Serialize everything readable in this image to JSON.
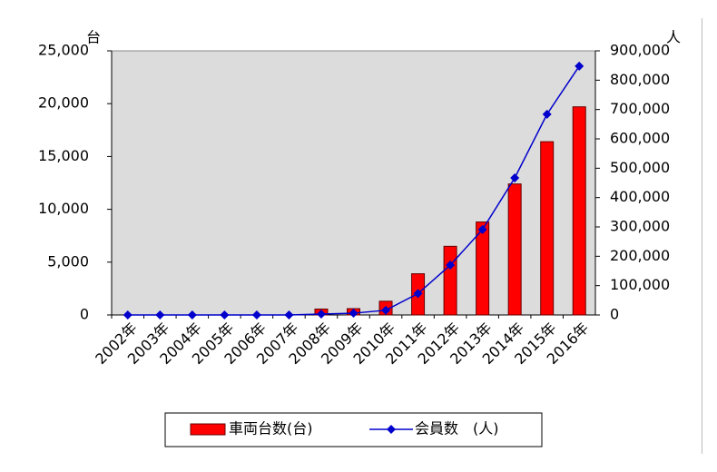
{
  "chart_data": {
    "type": "combo",
    "y_unit": "台",
    "y2_unit": "人",
    "categories": [
      "2002年",
      "2003年",
      "2004年",
      "2005年",
      "2006年",
      "2007年",
      "2008年",
      "2009年",
      "2010年",
      "2011年",
      "2012年",
      "2013年",
      "2014年",
      "2015年",
      "2016年"
    ],
    "series": [
      {
        "name": "車両台数(台)",
        "type": "bar",
        "color": "#ff0000",
        "values": [
          0,
          0,
          0,
          0,
          0,
          0,
          560,
          600,
          1300,
          3900,
          6500,
          8800,
          12400,
          16400,
          19700
        ]
      },
      {
        "name": "会員数　(人)",
        "type": "line",
        "axis": "y2",
        "color": "#0000cc",
        "values": [
          0,
          0,
          0,
          0,
          0,
          0,
          3000,
          6000,
          16000,
          73000,
          170000,
          291000,
          467000,
          684000,
          848000
        ]
      }
    ],
    "ylim": [
      0,
      25000
    ],
    "yticks": [
      0,
      {
        "value": 5000,
        "label": "5,000"
      },
      {
        "value": 10000,
        "label": "10,000"
      },
      {
        "value": 15000,
        "label": "15,000"
      },
      {
        "value": 20000,
        "label": "20,000"
      },
      {
        "value": 25000,
        "label": "25,000"
      }
    ],
    "y2lim": [
      0,
      900000
    ],
    "y2ticks": [
      0,
      {
        "value": 100000,
        "label": "100,000"
      },
      {
        "value": 200000,
        "label": "200,000"
      },
      {
        "value": 300000,
        "label": "300,000"
      },
      {
        "value": 400000,
        "label": "400,000"
      },
      {
        "value": 500000,
        "label": "500,000"
      },
      {
        "value": 600000,
        "label": "600,000"
      },
      {
        "value": 700000,
        "label": "700,000"
      },
      {
        "value": 800000,
        "label": "800,000"
      },
      {
        "value": 900000,
        "label": "900,000"
      }
    ],
    "grid": false
  }
}
